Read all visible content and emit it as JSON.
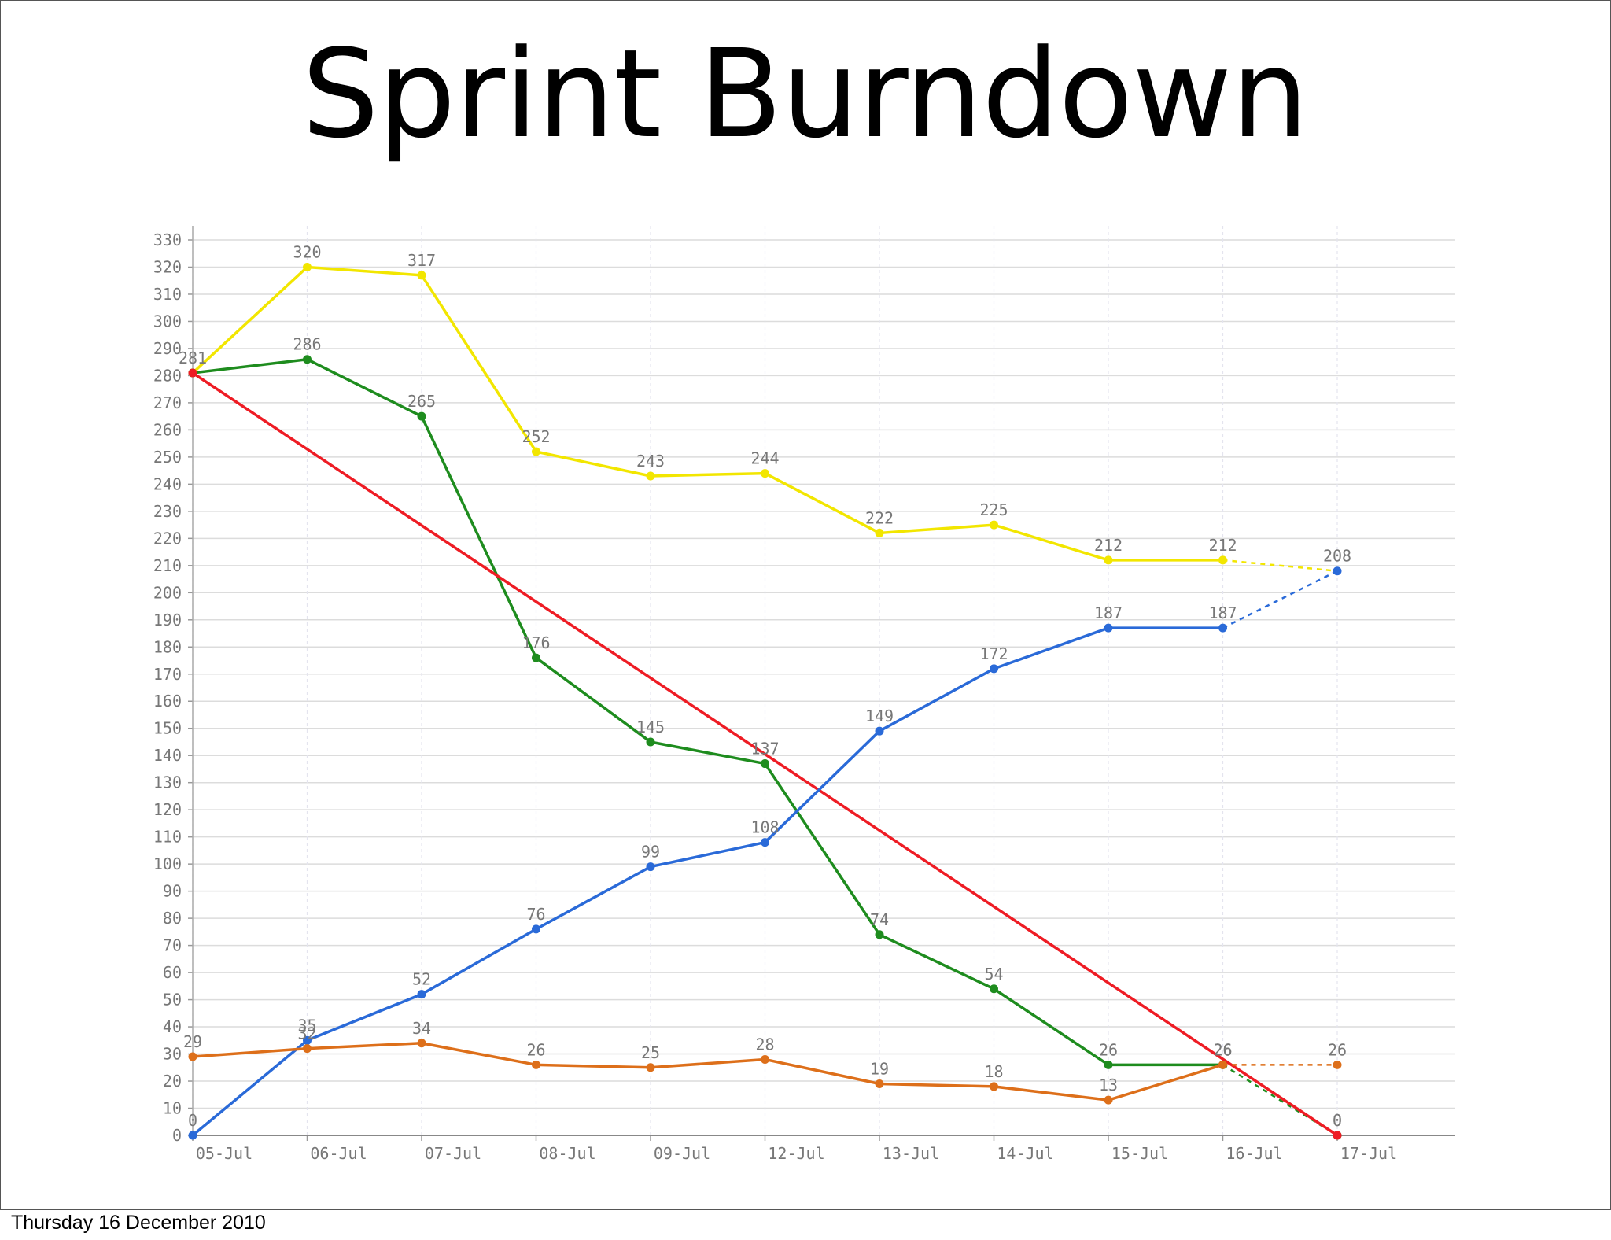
{
  "slide": {
    "title": "Sprint Burndown",
    "footer": "Thursday 16 December 2010"
  },
  "chart_data": {
    "type": "line",
    "title": "Sprint Burndown",
    "xlabel": "",
    "ylabel": "",
    "categories": [
      "05-Jul",
      "06-Jul",
      "07-Jul",
      "08-Jul",
      "09-Jul",
      "12-Jul",
      "13-Jul",
      "14-Jul",
      "15-Jul",
      "16-Jul",
      "17-Jul"
    ],
    "ylim": [
      0,
      330
    ],
    "yticks": [
      0,
      10,
      20,
      30,
      40,
      50,
      60,
      70,
      80,
      90,
      100,
      110,
      120,
      130,
      140,
      150,
      160,
      170,
      180,
      190,
      200,
      210,
      220,
      230,
      240,
      250,
      260,
      270,
      280,
      290,
      300,
      310,
      320,
      330
    ],
    "grid": true,
    "legend": "none",
    "series": [
      {
        "color": "#f2e600",
        "values": [
          281,
          320,
          317,
          252,
          243,
          244,
          222,
          225,
          212,
          212,
          208
        ],
        "labels": [
          "281",
          "320",
          "317",
          "252",
          "243",
          "244",
          "222",
          "225",
          "212",
          "212",
          ""
        ],
        "dashed_last": true,
        "last_marker": false
      },
      {
        "color": "#1e8c1e",
        "values": [
          281,
          286,
          265,
          176,
          145,
          137,
          74,
          54,
          26,
          26,
          0
        ],
        "labels": [
          "",
          "286",
          "265",
          "176",
          "145",
          "137",
          "74",
          "54",
          "26",
          "26",
          "0"
        ],
        "dashed_last": true,
        "last_marker": true
      },
      {
        "color": "#ee1c24",
        "values": [
          281,
          null,
          null,
          null,
          null,
          null,
          null,
          null,
          null,
          null,
          0
        ],
        "labels": [
          "",
          "",
          "",
          "",
          "",
          "",
          "",
          "",
          "",
          "",
          "0"
        ],
        "dashed_last": false,
        "last_marker": true,
        "ideal": true
      },
      {
        "color": "#2a6ad8",
        "values": [
          0,
          35,
          52,
          76,
          99,
          108,
          149,
          172,
          187,
          187,
          208
        ],
        "labels": [
          "0",
          "35",
          "52",
          "76",
          "99",
          "108",
          "149",
          "172",
          "187",
          "187",
          "208"
        ],
        "dashed_last": true,
        "last_marker": true
      },
      {
        "color": "#dd6f1a",
        "values": [
          29,
          32,
          34,
          26,
          25,
          28,
          19,
          18,
          13,
          26,
          26
        ],
        "labels": [
          "29",
          "32",
          "34",
          "26",
          "25",
          "28",
          "19",
          "18",
          "13",
          "26",
          "26"
        ],
        "dashed_last": true,
        "last_marker": true
      }
    ]
  }
}
